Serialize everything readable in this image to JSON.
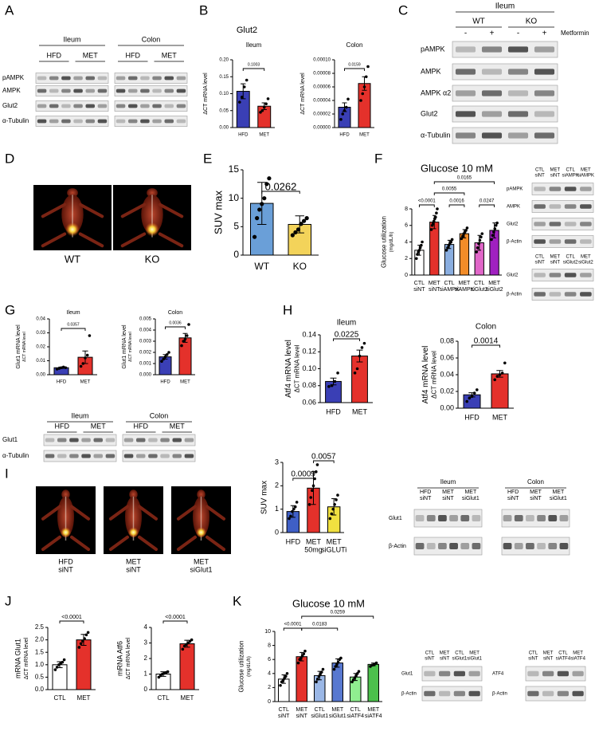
{
  "panels": [
    "A",
    "B",
    "C",
    "D",
    "E",
    "F",
    "G",
    "H",
    "I",
    "J",
    "K"
  ],
  "panel_titles": {
    "B": "Glut2"
  },
  "images": {
    "D": [
      "WT",
      "KO"
    ],
    "I": [
      [
        "HFD",
        "siNT"
      ],
      [
        "MET",
        "siNT"
      ],
      [
        "MET",
        "siGlut1"
      ]
    ]
  },
  "blots": [
    {
      "headers": [
        "Ileum",
        "Colon"
      ],
      "groups": [
        "HFD",
        "MET",
        "HFD",
        "MET"
      ],
      "rows": [
        "pAMPK",
        "AMPK",
        "Glut2",
        "α-Tubulin"
      ]
    },
    {
      "headers": [
        "Ileum"
      ],
      "groups": [
        "WT",
        "KO"
      ],
      "columns": [
        "-",
        "+",
        "-",
        "+"
      ],
      "treatment": "Metformin",
      "rows": [
        "pAMPK",
        "AMPK",
        "AMPK α2",
        "Glut2",
        "α-Tubulin"
      ]
    },
    {
      "columns": [
        [
          "CTL",
          "siNT"
        ],
        [
          "MET",
          "siNT"
        ],
        [
          "CTL",
          "siAMPK"
        ],
        [
          "MET",
          "siAMPK"
        ]
      ],
      "rows": [
        "pAMPK",
        "AMPK",
        "Glut2",
        "β-Actin"
      ]
    },
    {
      "columns": [
        [
          "CTL",
          "siNT"
        ],
        [
          "MET",
          "siNT"
        ],
        [
          "CTL",
          "siGlut2"
        ],
        [
          "MET",
          "siGlut2"
        ]
      ],
      "rows": [
        "Glut2",
        "β-Actin"
      ]
    },
    {
      "headers": [
        "Ileum",
        "Colon"
      ],
      "groups": [
        "HFD",
        "MET",
        "HFD",
        "MET"
      ],
      "rows": [
        "Glut1",
        "α-Tubulin"
      ]
    },
    {
      "headers": [
        "Ileum",
        "Colon"
      ],
      "columns": [
        [
          "HFD",
          "siNT"
        ],
        [
          "MET",
          "siNT"
        ],
        [
          "MET",
          "siGlut1"
        ],
        [
          "HFD",
          "siNT"
        ],
        [
          "MET",
          "siNT"
        ],
        [
          "MET",
          "siGlut1"
        ]
      ],
      "rows": [
        "Glut1",
        "β-Actin"
      ]
    },
    {
      "columns": [
        [
          "CTL",
          "siNT"
        ],
        [
          "MET",
          "siNT"
        ],
        [
          "CTL",
          "siGlut1"
        ],
        [
          "MET",
          "siGlut1"
        ]
      ],
      "rows": [
        "Glut1",
        "β-Actin"
      ]
    },
    {
      "columns": [
        [
          "CTL",
          "siNT"
        ],
        [
          "MET",
          "siNT"
        ],
        [
          "CTL",
          "siATF4"
        ],
        [
          "MET",
          "siATF4"
        ]
      ],
      "rows": [
        "ATF4",
        "β-Actin"
      ]
    }
  ],
  "chart_data": [
    {
      "type": "bar",
      "title": "Ileum",
      "ylabel": "ΔCT mRNA level",
      "categories": [
        [
          "HFD"
        ],
        [
          "MET"
        ]
      ],
      "values": [
        0.107,
        0.063
      ],
      "errors": [
        0.022,
        0.01
      ],
      "points": [
        [
          0.075,
          0.09,
          0.12,
          0.14
        ],
        [
          0.045,
          0.05,
          0.06,
          0.07,
          0.085
        ]
      ],
      "colors": [
        "#3a3fb5",
        "#e4312b"
      ],
      "ylim": [
        0,
        0.2
      ],
      "yticks": [
        {
          "value": 0,
          "label": "0.00"
        },
        0.05,
        {
          "value": 0.1,
          "label": "0.10"
        },
        0.15,
        {
          "value": 0.2,
          "label": "0.20"
        }
      ],
      "comparisons": [
        {
          "label": "0.1003",
          "groups": [
            0,
            1
          ]
        }
      ]
    },
    {
      "type": "bar",
      "title": "Colon",
      "ylabel": "ΔCT mRNA level",
      "categories": [
        [
          "HFD"
        ],
        [
          "MET"
        ]
      ],
      "values": [
        3e-05,
        6.5e-05
      ],
      "errors": [
        6.5e-06,
        1e-05
      ],
      "points": [
        [
          1.2e-05,
          2e-05,
          2.5e-05,
          3e-05,
          4.2e-05
        ],
        [
          4e-05,
          5e-05,
          6e-05,
          7.5e-05,
          9e-05
        ]
      ],
      "colors": [
        "#3a3fb5",
        "#e4312b"
      ],
      "ylim": [
        0,
        0.0001
      ],
      "yticks": [
        {
          "value": 0,
          "label": "0.00000"
        },
        2e-05,
        4e-05,
        6e-05,
        8e-05,
        {
          "value": 0.0001,
          "label": "0.00010"
        }
      ],
      "comparisons": [
        {
          "label": "0.0159",
          "groups": [
            0,
            1
          ]
        }
      ]
    },
    {
      "type": "bar",
      "ylabel": "SUV max",
      "categories": [
        [
          "WT"
        ],
        [
          "KO"
        ]
      ],
      "values": [
        9.1,
        5.4
      ],
      "errors": [
        3.7,
        1.5
      ],
      "points": [
        [
          3.2,
          6.5,
          8,
          9,
          10,
          12.5,
          13.5
        ],
        [
          3.5,
          4,
          4.5,
          5.5,
          6,
          6.5
        ]
      ],
      "colors": [
        "#6a9fd8",
        "#f3d35a"
      ],
      "ylim": [
        0,
        15
      ],
      "yticks": [
        0,
        5,
        10,
        15
      ],
      "comparisons": [
        {
          "label": "0.0262",
          "groups": [
            0,
            1
          ]
        }
      ]
    },
    {
      "type": "bar",
      "title": "Glucose 10 mM",
      "ylabel": "Glucose utilization",
      "ylabel_sub": "(mg/dL/h)",
      "categories": [
        [
          "CTL",
          "siNT"
        ],
        [
          "MET",
          "siNT"
        ],
        [
          "CTL",
          "siAMPK"
        ],
        [
          "MET",
          "siAMPK"
        ],
        [
          "CTL",
          "siGlut2"
        ],
        [
          "MET",
          "siGlut2"
        ]
      ],
      "values": [
        3.0,
        6.4,
        3.7,
        5.0,
        3.9,
        5.4
      ],
      "errors": [
        0.6,
        0.8,
        0.5,
        0.5,
        0.9,
        0.9
      ],
      "points": [
        [
          2,
          2.5,
          2.8,
          3,
          3.3,
          3.6,
          4
        ],
        [
          5.5,
          6,
          6.2,
          6.5,
          6.8,
          7,
          7.5,
          8
        ],
        [
          3,
          3.3,
          3.6,
          3.8,
          4,
          4.3
        ],
        [
          4.4,
          4.7,
          5,
          5.2,
          5.4,
          5.7
        ],
        [
          2.8,
          3.3,
          3.8,
          4.2,
          4.6,
          5
        ],
        [
          4.3,
          4.8,
          5.2,
          5.6,
          6,
          6.3
        ]
      ],
      "colors": [
        "#ffffff",
        "#e4312b",
        "#8aaee0",
        "#f28c28",
        "#e066c8",
        "#a020c0"
      ],
      "ylim": [
        0,
        8
      ],
      "yticks": [
        0,
        2,
        4,
        6,
        8
      ],
      "comparisons": [
        {
          "label": "<0.0001",
          "groups": [
            0,
            1
          ]
        },
        {
          "label": "0.0016",
          "groups": [
            2,
            3
          ]
        },
        {
          "label": "0.0247",
          "groups": [
            4,
            5
          ]
        },
        {
          "label": "0.0055",
          "groups": [
            1,
            3
          ]
        },
        {
          "label": "0.0165",
          "groups": [
            1,
            5
          ]
        }
      ]
    },
    {
      "type": "bar",
      "title": "Ileum",
      "ylabel": "Glut1 mRNA level",
      "ylabel_sub": "ΔCT mRNA level",
      "categories": [
        [
          "HFD"
        ],
        [
          "MET"
        ]
      ],
      "values": [
        0.005,
        0.0125
      ],
      "errors": [
        0.0005,
        0.0045
      ],
      "points": [
        [
          0.004,
          0.0045,
          0.005,
          0.0055,
          0.005
        ],
        [
          0.006,
          0.008,
          0.012,
          0.014,
          0.028
        ]
      ],
      "colors": [
        "#3a3fb5",
        "#e4312b"
      ],
      "ylim": [
        0,
        0.04
      ],
      "yticks": [
        {
          "value": 0,
          "label": "0.00"
        },
        0.01,
        0.02,
        0.03,
        0.04
      ],
      "comparisons": [
        {
          "label": "0.0357",
          "groups": [
            0,
            1
          ]
        }
      ]
    },
    {
      "type": "bar",
      "title": "Colon",
      "ylabel": "Glut1 mRNA level",
      "ylabel_sub": "ΔCT mRNA level",
      "categories": [
        [
          "HFD"
        ],
        [
          "MET"
        ]
      ],
      "values": [
        0.0016,
        0.0033
      ],
      "errors": [
        0.0002,
        0.0004
      ],
      "points": [
        [
          0.0012,
          0.0014,
          0.0016,
          0.0018,
          0.002
        ],
        [
          0.0026,
          0.003,
          0.0032,
          0.0035,
          0.0045
        ]
      ],
      "colors": [
        "#3a3fb5",
        "#e4312b"
      ],
      "ylim": [
        0,
        0.005
      ],
      "yticks": [
        {
          "value": 0,
          "label": "0.000"
        },
        0.001,
        0.002,
        0.003,
        0.004,
        0.005
      ],
      "comparisons": [
        {
          "label": "0.0036",
          "groups": [
            0,
            1
          ]
        }
      ]
    },
    {
      "type": "bar",
      "title": "Ileum",
      "ylabel": "Atf4 mRNA level",
      "ylabel_sub": "ΔCT mRNA level",
      "categories": [
        [
          "HFD"
        ],
        [
          "MET"
        ]
      ],
      "values": [
        0.085,
        0.115
      ],
      "errors": [
        0.004,
        0.007
      ],
      "points": [
        [
          0.079,
          0.08,
          0.085,
          0.095
        ],
        [
          0.095,
          0.1,
          0.115,
          0.125,
          0.13
        ]
      ],
      "colors": [
        "#3a3fb5",
        "#e4312b"
      ],
      "ylim": [
        0.06,
        0.14
      ],
      "yticks": [
        0.06,
        0.08,
        {
          "value": 0.1,
          "label": "0.10"
        },
        0.12,
        0.14
      ],
      "comparisons": [
        {
          "label": "0.0225",
          "groups": [
            0,
            1
          ]
        }
      ]
    },
    {
      "type": "bar",
      "title": "Colon",
      "ylabel": "Atf4 mRNA level",
      "ylabel_sub": "ΔCT mRNA level",
      "categories": [
        [
          "HFD"
        ],
        [
          "MET"
        ]
      ],
      "values": [
        0.016,
        0.041
      ],
      "errors": [
        0.0025,
        0.004
      ],
      "points": [
        [
          0.008,
          0.012,
          0.014,
          0.018,
          0.022
        ],
        [
          0.034,
          0.038,
          0.04,
          0.042,
          0.054
        ]
      ],
      "colors": [
        "#3a3fb5",
        "#e4312b"
      ],
      "ylim": [
        0,
        0.08
      ],
      "yticks": [
        {
          "value": 0,
          "label": "0.00"
        },
        0.02,
        0.04,
        0.06,
        0.08
      ],
      "comparisons": [
        {
          "label": "0.0014",
          "groups": [
            0,
            1
          ]
        }
      ]
    },
    {
      "type": "bar",
      "ylabel": "SUV max",
      "categories": [
        [
          "HFD"
        ],
        [
          "MET",
          "50mg"
        ],
        [
          "MET",
          "siGLUTi"
        ]
      ],
      "values": [
        0.9,
        1.9,
        1.1
      ],
      "errors": [
        0.25,
        0.7,
        0.35
      ],
      "points": [
        [
          0.6,
          0.7,
          0.9,
          1.0,
          1.1,
          1.3
        ],
        [
          1.2,
          1.5,
          1.8,
          2.0,
          2.3,
          2.6,
          2.9
        ],
        [
          0.6,
          0.8,
          1.0,
          1.2,
          1.4,
          1.6
        ]
      ],
      "colors": [
        "#3f5fc6",
        "#e4312b",
        "#f0e040"
      ],
      "ylim": [
        0,
        3
      ],
      "yticks": [
        0,
        1,
        2,
        3
      ],
      "comparisons": [
        {
          "label": "0.0009",
          "groups": [
            0,
            1
          ]
        },
        {
          "label": "0.0057",
          "groups": [
            1,
            2
          ]
        }
      ]
    },
    {
      "type": "bar",
      "ylabel": "mRNA Glut1",
      "ylabel_sub": "ΔCT mRNA level",
      "categories": [
        [
          "CTL"
        ],
        [
          "MET"
        ]
      ],
      "values": [
        1.0,
        2.0
      ],
      "errors": [
        0.12,
        0.22
      ],
      "points": [
        [
          0.8,
          0.9,
          1.0,
          1.05,
          1.1,
          1.2
        ],
        [
          1.7,
          1.85,
          1.95,
          2.05,
          2.2,
          2.3
        ]
      ],
      "colors": [
        "#ffffff",
        "#e4312b"
      ],
      "ylim": [
        0,
        2.5
      ],
      "yticks": [
        {
          "value": 0,
          "label": "0.0"
        },
        0.5,
        {
          "value": 1,
          "label": "1.0"
        },
        1.5,
        {
          "value": 2,
          "label": "2.0"
        },
        2.5
      ],
      "comparisons": [
        {
          "label": "<0.0001",
          "groups": [
            0,
            1
          ]
        }
      ]
    },
    {
      "type": "bar",
      "ylabel": "mRNA Atf6",
      "ylabel_sub": "ΔCT mRNA level",
      "categories": [
        [
          "CTL"
        ],
        [
          "MET"
        ]
      ],
      "values": [
        1.0,
        2.95
      ],
      "errors": [
        0.15,
        0.22
      ],
      "points": [
        [
          0.8,
          0.9,
          1.0,
          1.05,
          1.1,
          1.15
        ],
        [
          2.6,
          2.8,
          2.9,
          3.0,
          3.1,
          3.2
        ]
      ],
      "colors": [
        "#ffffff",
        "#e4312b"
      ],
      "ylim": [
        0,
        4
      ],
      "yticks": [
        0,
        1,
        2,
        3,
        4
      ],
      "comparisons": [
        {
          "label": "<0.0001",
          "groups": [
            0,
            1
          ]
        }
      ]
    },
    {
      "type": "bar",
      "title": "Glucose  10 mM",
      "ylabel": "Glucose utilization",
      "ylabel_sub": "(mg/dL/h)",
      "categories": [
        [
          "CTL",
          "siNT"
        ],
        [
          "MET",
          "siNT"
        ],
        [
          "CTL",
          "siGlut1"
        ],
        [
          "MET",
          "siGlut1"
        ],
        [
          "CTL",
          "siATF4"
        ],
        [
          "MET",
          "siATF4"
        ]
      ],
      "values": [
        3.2,
        6.4,
        3.7,
        5.5,
        3.5,
        5.3
      ],
      "errors": [
        0.6,
        0.6,
        0.6,
        0.6,
        0.5,
        0.2
      ],
      "points": [
        [
          2.3,
          2.8,
          3,
          3.3,
          3.6,
          4
        ],
        [
          5.5,
          6,
          6.2,
          6.5,
          6.8,
          7.2
        ],
        [
          2.8,
          3.2,
          3.6,
          3.9,
          4.2,
          4.6
        ],
        [
          4.6,
          5,
          5.3,
          5.6,
          6,
          6.2
        ],
        [
          2.8,
          3.1,
          3.4,
          3.7,
          4,
          4.3
        ],
        [
          5,
          5.2,
          5.3,
          5.5
        ]
      ],
      "colors": [
        "#ffffff",
        "#e4312b",
        "#9ab7e6",
        "#5878d0",
        "#90ee90",
        "#4cc04c"
      ],
      "ylim": [
        0,
        10
      ],
      "yticks": [
        0,
        2,
        4,
        6,
        8,
        10
      ],
      "comparisons": [
        {
          "label": "<0.0001",
          "groups": [
            0,
            1
          ]
        },
        {
          "label": "0.0183",
          "groups": [
            1,
            3
          ]
        },
        {
          "label": "0.0259",
          "groups": [
            1,
            5
          ]
        }
      ]
    }
  ]
}
